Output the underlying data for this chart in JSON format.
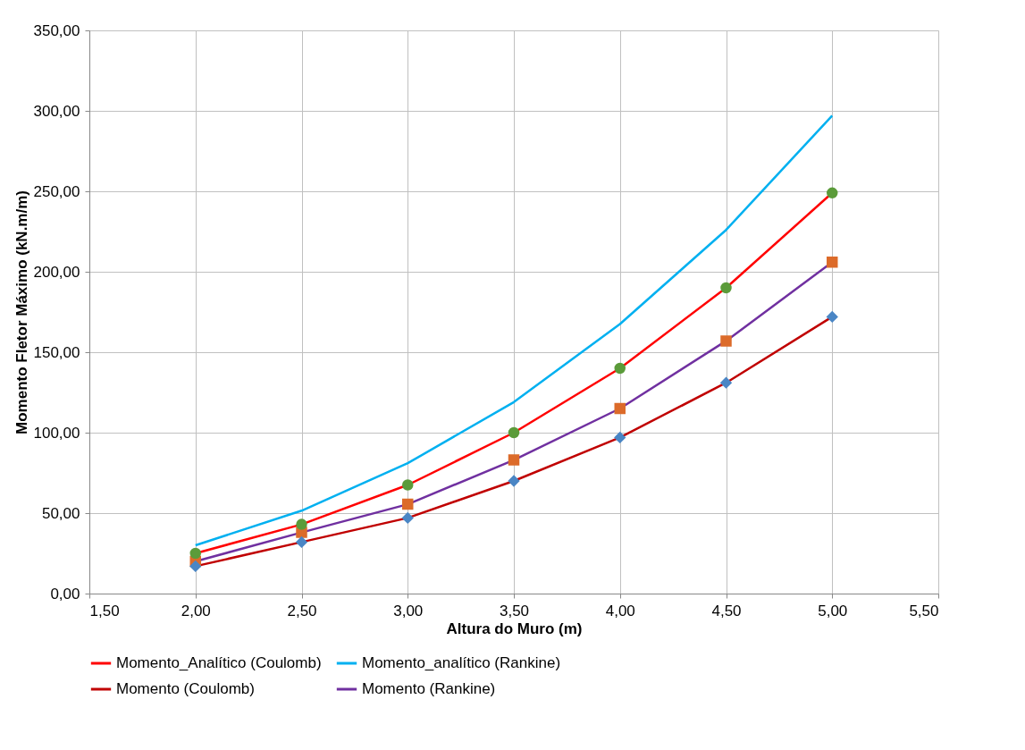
{
  "chart_data": {
    "type": "line",
    "xlabel": "Altura do Muro (m)",
    "ylabel": "Momento Fletor Máximo (kN.m/m)",
    "x": [
      2.0,
      2.5,
      3.0,
      3.5,
      4.0,
      4.5,
      5.0
    ],
    "series": [
      {
        "name": "Momento_Analítico (Coulomb)",
        "color": "#ff0000",
        "marker": "circle",
        "colors": [
          "#5b9b3a",
          "#5b9b3a",
          "#5b9b3a",
          "#5b9b3a",
          "#5b9b3a",
          "#5b9b3a",
          "#5b9b3a"
        ],
        "values": [
          25,
          43,
          67.5,
          100,
          140,
          190,
          249
        ]
      },
      {
        "name": "Momento_analítico (Rankine)",
        "color": "#00b0f0",
        "marker": "none",
        "values": [
          30,
          51.5,
          81,
          119,
          167.5,
          226,
          297
        ]
      },
      {
        "name": "Momento (Coulomb)",
        "color": "#c00000",
        "marker": "diamond",
        "colors": [
          "#4a86c5",
          "#4a86c5",
          "#4a86c5",
          "#4a86c5",
          "#4a86c5",
          "#4a86c5",
          "#4a86c5"
        ],
        "values": [
          17,
          32,
          47,
          70,
          97,
          131,
          172
        ]
      },
      {
        "name": "Momento (Rankine)",
        "color": "#7030a0",
        "marker": "square",
        "colors": [
          "#dc6b2a",
          "#dc6b2a",
          "#dc6b2a",
          "#dc6b2a",
          "#dc6b2a",
          "#dc6b2a",
          "#dc6b2a"
        ],
        "values": [
          20,
          38,
          55.5,
          83,
          115,
          157,
          206
        ]
      }
    ],
    "xlim": [
      1.5,
      5.5
    ],
    "xticks": [
      {
        "value": 1.5,
        "label": "1,50"
      },
      {
        "value": 2.0,
        "label": "2,00"
      },
      {
        "value": 2.5,
        "label": "2,50"
      },
      {
        "value": 3.0,
        "label": "3,00"
      },
      {
        "value": 3.5,
        "label": "3,50"
      },
      {
        "value": 4.0,
        "label": "4,00"
      },
      {
        "value": 4.5,
        "label": "4,50"
      },
      {
        "value": 5.0,
        "label": "5,00"
      },
      {
        "value": 5.5,
        "label": "5,50"
      }
    ],
    "ylim": [
      0,
      350
    ],
    "yticks": [
      {
        "value": 0,
        "label": "0,00"
      },
      {
        "value": 50,
        "label": "50,00"
      },
      {
        "value": 100,
        "label": "100,00"
      },
      {
        "value": 150,
        "label": "150,00"
      },
      {
        "value": 200,
        "label": "200,00"
      },
      {
        "value": 250,
        "label": "250,00"
      },
      {
        "value": 300,
        "label": "300,00"
      },
      {
        "value": 350,
        "label": "350,00"
      }
    ],
    "grid": true,
    "legend": "bottom",
    "line_style": "solid"
  }
}
